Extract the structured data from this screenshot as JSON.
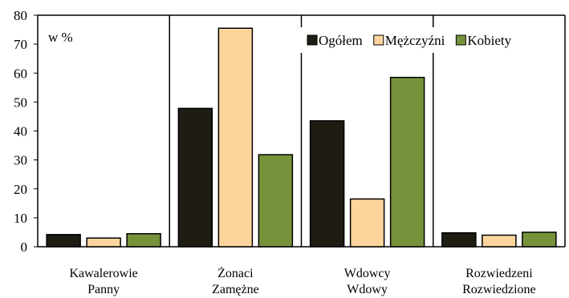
{
  "chart_data": {
    "type": "bar",
    "unit_label": "w %",
    "categories": [
      [
        "Kawalerowie",
        "Panny"
      ],
      [
        "Żonaci",
        "Zamężne"
      ],
      [
        "Wdowcy",
        "Wdowy"
      ],
      [
        "Rozwiedzeni",
        "Rozwiedzione"
      ]
    ],
    "series": [
      {
        "name": "Ogółem",
        "color": "#1f1c14",
        "values": [
          4.2,
          47.8,
          43.5,
          4.8
        ]
      },
      {
        "name": "Mężczyźni",
        "color": "#fcd59d",
        "values": [
          3.0,
          75.5,
          16.5,
          4.0
        ]
      },
      {
        "name": "Kobiety",
        "color": "#76933c",
        "values": [
          4.5,
          31.8,
          58.5,
          5.0
        ]
      }
    ],
    "ylim": [
      0,
      80
    ],
    "yticks": [
      0,
      10,
      20,
      30,
      40,
      50,
      60,
      70,
      80
    ],
    "legend_position": "top-right",
    "grid": false
  }
}
